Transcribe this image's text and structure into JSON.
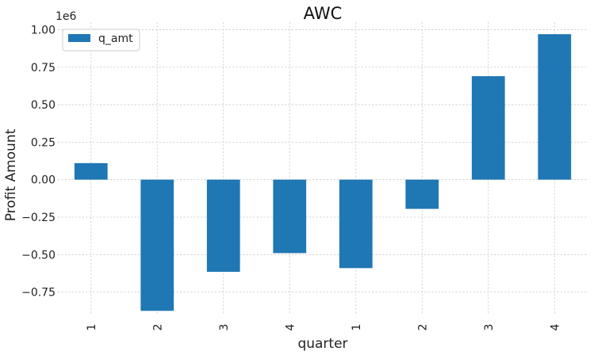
{
  "chart_data": {
    "type": "bar",
    "title": "AWC",
    "xlabel": "quarter",
    "ylabel": "Profit Amount",
    "offset_label": "1e6",
    "categories": [
      "1",
      "2",
      "3",
      "4",
      "1",
      "2",
      "3",
      "4"
    ],
    "series": [
      {
        "name": "q_amt",
        "color": "#1f77b4",
        "values": [
          0.11,
          -0.875,
          -0.615,
          -0.49,
          -0.59,
          -0.195,
          0.69,
          0.97
        ]
      }
    ],
    "ylim": [
      -0.9,
      1.05
    ],
    "yticks": [
      -0.75,
      -0.5,
      -0.25,
      0.0,
      0.25,
      0.5,
      0.75,
      1.0
    ],
    "ytick_labels": [
      "−0.75",
      "−0.50",
      "−0.25",
      "0.00",
      "0.25",
      "0.50",
      "0.75",
      "1.00"
    ],
    "grid": true,
    "legend_position": "upper-left"
  }
}
